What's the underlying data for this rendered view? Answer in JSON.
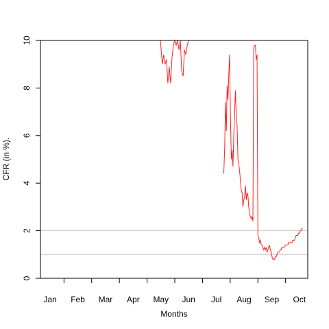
{
  "chart_data": {
    "type": "line",
    "title": "",
    "xlabel": "Months",
    "ylabel": "CFR (in %).",
    "ylim": [
      0,
      10
    ],
    "yticks": [
      0,
      2,
      4,
      6,
      8,
      10
    ],
    "y_tick_labels": [
      "0",
      "2",
      "4",
      "6",
      "8",
      "10"
    ],
    "xlim": [
      -0.35,
      9.3
    ],
    "x_tick_positions": [
      0.5,
      1.5,
      2.5,
      3.5,
      4.5,
      5.5,
      6.5,
      7.5,
      8.5
    ],
    "months": [
      {
        "label": "Jan",
        "x": 0
      },
      {
        "label": "Feb",
        "x": 1
      },
      {
        "label": "Mar",
        "x": 2
      },
      {
        "label": "Apr",
        "x": 3
      },
      {
        "label": "May",
        "x": 4
      },
      {
        "label": "Jun",
        "x": 5
      },
      {
        "label": "Jul",
        "x": 6
      },
      {
        "label": "Aug",
        "x": 7
      },
      {
        "label": "Sep",
        "x": 8
      },
      {
        "label": "Oct",
        "x": 9
      }
    ],
    "reference_lines": [
      2,
      1
    ],
    "grid": false,
    "legend": "none",
    "colors": {
      "series": "#ff2020",
      "reference": "#c8c8c8",
      "axis": "#000000"
    },
    "series": [
      {
        "x": [
          3.98,
          4.05,
          4.1,
          4.15,
          4.2,
          4.25,
          4.3,
          4.35,
          4.4,
          4.45,
          4.5,
          4.55,
          4.6,
          4.65,
          4.7,
          4.75,
          4.8,
          4.85,
          4.9,
          4.95,
          5.0,
          5.05,
          5.1,
          5.15,
          5.2,
          5.25,
          5.3,
          5.35,
          5.4,
          5.45,
          5.5,
          5.55,
          6.27,
          6.3,
          6.33,
          6.36,
          6.39,
          6.42,
          6.45,
          6.48,
          6.51,
          6.54,
          6.57,
          6.6,
          6.63,
          6.66,
          6.69,
          6.72,
          6.75,
          6.78,
          6.81,
          6.84,
          6.87,
          6.9,
          6.93,
          6.96,
          6.99,
          7.02,
          7.05,
          7.08,
          7.11,
          7.14,
          7.17,
          7.2,
          7.23,
          7.26,
          7.29,
          7.32,
          7.35,
          7.38,
          7.41,
          7.44,
          7.47,
          7.5,
          7.53,
          7.56,
          7.59,
          7.62,
          7.65,
          7.68,
          7.71,
          7.74,
          7.77,
          7.8,
          7.83,
          7.86,
          7.89,
          7.92,
          7.95,
          7.98,
          8.01,
          8.04,
          8.07,
          8.1,
          8.13,
          8.16,
          8.19,
          8.22,
          8.25,
          8.28,
          8.31,
          8.34,
          8.37,
          8.4,
          8.43,
          8.46,
          8.49,
          8.52,
          8.55,
          8.58,
          8.61,
          8.64,
          8.67,
          8.7,
          8.73,
          8.76,
          8.79,
          8.82,
          8.85,
          8.88,
          8.91,
          8.94,
          8.97,
          9.0,
          9.03,
          9.06,
          9.09,
          9.12
        ],
        "y": [
          10.0,
          9.0,
          9.4,
          9.0,
          9.2,
          8.2,
          8.9,
          8.2,
          9.3,
          9.8,
          10.0,
          9.8,
          10.0,
          9.6,
          10.0,
          8.7,
          8.5,
          9.6,
          9.4,
          9.8,
          10.0,
          10.0,
          10.0,
          10.0,
          10.0,
          10.0,
          10.0,
          10.0,
          10.0,
          10.0,
          10.0,
          10.0,
          4.4,
          5.5,
          7.4,
          6.2,
          8.1,
          7.5,
          8.6,
          9.4,
          6.8,
          5.0,
          5.4,
          4.7,
          6.0,
          7.0,
          7.9,
          6.8,
          6.4,
          5.0,
          4.8,
          4.5,
          4.1,
          3.7,
          3.6,
          3.0,
          3.3,
          3.4,
          3.9,
          3.3,
          3.6,
          3.5,
          3.0,
          2.7,
          2.6,
          2.5,
          2.6,
          2.4,
          9.7,
          9.8,
          9.8,
          9.2,
          9.4,
          1.8,
          1.7,
          1.5,
          1.6,
          1.4,
          1.4,
          1.3,
          1.2,
          1.3,
          1.2,
          1.3,
          1.1,
          1.2,
          1.3,
          1.4,
          1.2,
          1.1,
          0.9,
          0.8,
          0.8,
          0.8,
          0.9,
          0.9,
          1.0,
          1.1,
          1.1,
          1.1,
          1.2,
          1.2,
          1.3,
          1.3,
          1.3,
          1.3,
          1.4,
          1.4,
          1.4,
          1.4,
          1.5,
          1.5,
          1.5,
          1.5,
          1.5,
          1.6,
          1.6,
          1.6,
          1.7,
          1.8,
          1.8,
          1.8,
          1.9,
          1.9,
          2.0,
          2.0,
          2.1,
          2.1
        ],
        "break_after_index": 31
      }
    ]
  }
}
